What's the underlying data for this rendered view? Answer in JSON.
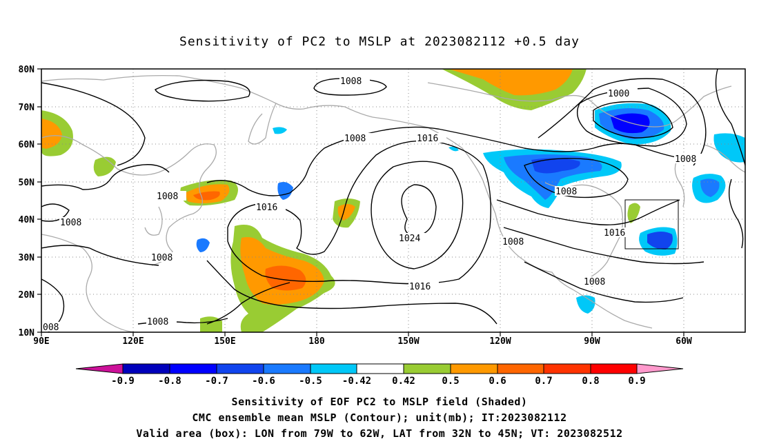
{
  "title": "Sensitivity of PC2 to MSLP at 2023082112 +0.5 day",
  "lat_ticks": [
    "80N",
    "70N",
    "60N",
    "50N",
    "40N",
    "30N",
    "20N",
    "10N"
  ],
  "lon_ticks": [
    "90E",
    "120E",
    "150E",
    "180",
    "150W",
    "120W",
    "90W",
    "60W"
  ],
  "contour_labels": [
    "1008",
    "1000",
    "1008",
    "1016",
    "1008",
    "1008",
    "1016",
    "1008",
    "1024",
    "1008",
    "1016",
    "1008",
    "1016",
    "1008",
    "1008",
    "008"
  ],
  "colorbar": {
    "labels": [
      "-0.9",
      "-0.8",
      "-0.7",
      "-0.6",
      "-0.5",
      "-0.42",
      "0.42",
      "0.5",
      "0.6",
      "0.7",
      "0.8",
      "0.9"
    ],
    "colors": [
      "#cc1199",
      "#0000bb",
      "#0000ff",
      "#1144ee",
      "#1a7aff",
      "#00c8f8",
      "#ffffff",
      "#99cc33",
      "#ff9900",
      "#ff6600",
      "#ff3300",
      "#ff0000",
      "#ff99cc"
    ]
  },
  "footer": {
    "line1": "Sensitivity of EOF PC2 to MSLP field (Shaded)",
    "line2": "CMC ensemble mean MSLP (Contour); unit(mb); IT:2023082112",
    "line3": "Valid area (box): LON from 79W to 62W, LAT from 32N to 45N; VT: 2023082512"
  }
}
